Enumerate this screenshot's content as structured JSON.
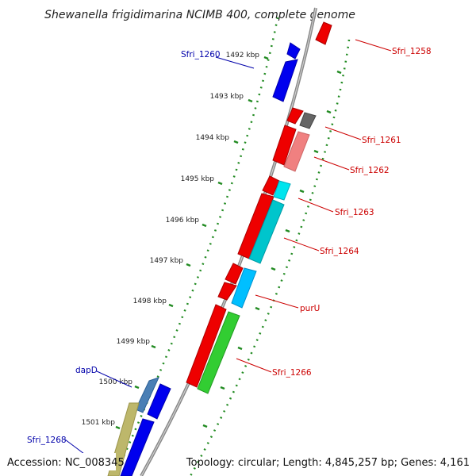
{
  "title": "Shewanella frigidimarina NCIMB 400, complete genome",
  "accession": "Accession: NC_008345",
  "topology": "Topology: circular; Length: 4,845,257 bp; Genes: 4,161",
  "ticks": [
    "1492 kbp",
    "1493 kbp",
    "1494 kbp",
    "1495 kbp",
    "1496 kbp",
    "1497 kbp",
    "1498 kbp",
    "1499 kbp",
    "1500 kbp",
    "1501 kbp"
  ],
  "gene_labels": [
    {
      "text": "Sfri_1258",
      "color": "#cc0000"
    },
    {
      "text": "Sfri_1260",
      "color": "#0000aa"
    },
    {
      "text": "Sfri_1261",
      "color": "#cc0000"
    },
    {
      "text": "Sfri_1262",
      "color": "#cc0000"
    },
    {
      "text": "Sfri_1263",
      "color": "#cc0000"
    },
    {
      "text": "Sfri_1264",
      "color": "#cc0000"
    },
    {
      "text": "purU",
      "color": "#cc0000"
    },
    {
      "text": "Sfri_1266",
      "color": "#cc0000"
    },
    {
      "text": "dapD",
      "color": "#0000aa"
    },
    {
      "text": "Sfri_1268",
      "color": "#0000aa"
    }
  ]
}
